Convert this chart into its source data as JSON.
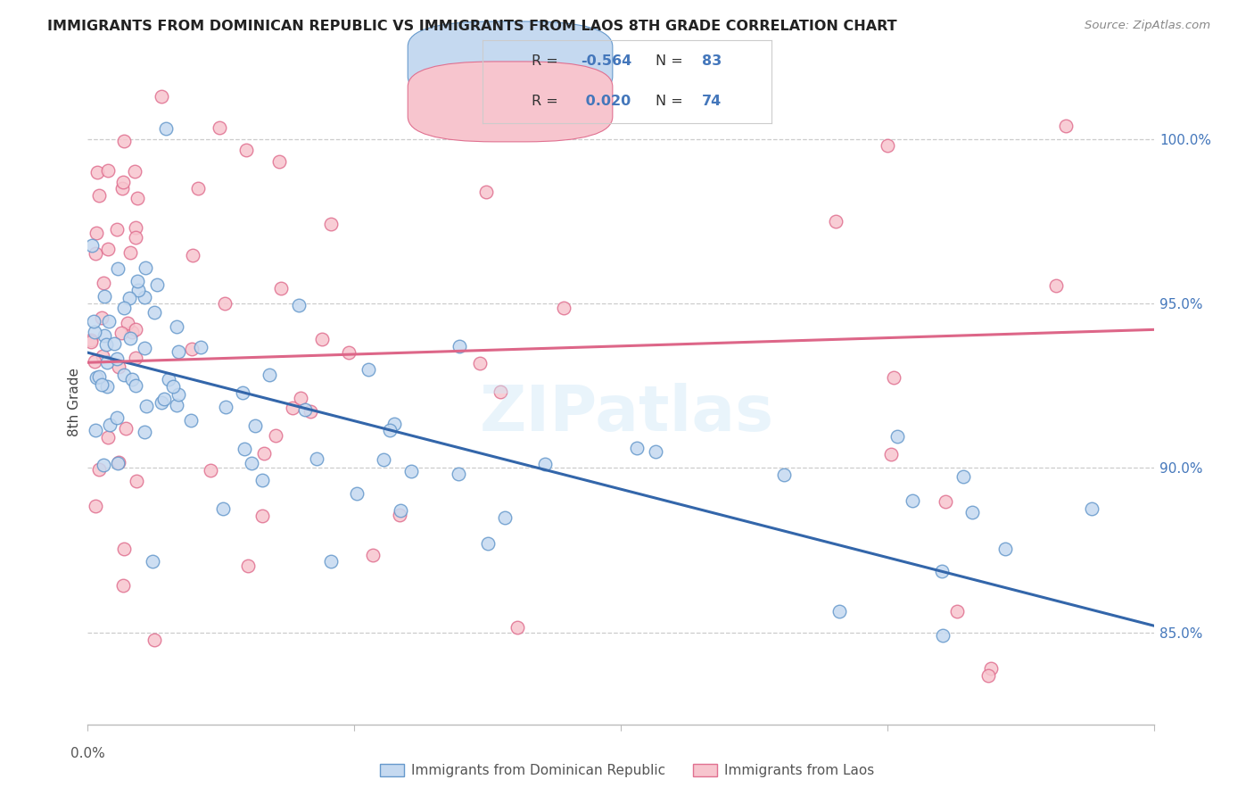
{
  "title": "IMMIGRANTS FROM DOMINICAN REPUBLIC VS IMMIGRANTS FROM LAOS 8TH GRADE CORRELATION CHART",
  "source": "Source: ZipAtlas.com",
  "ylabel": "8th Grade",
  "right_yticks": [
    "100.0%",
    "95.0%",
    "90.0%",
    "85.0%"
  ],
  "right_ytick_vals": [
    1.0,
    0.95,
    0.9,
    0.85
  ],
  "xmin": 0.0,
  "xmax": 0.4,
  "ymin": 0.822,
  "ymax": 1.018,
  "color_blue_fill": "#c5d9f0",
  "color_blue_edge": "#6699cc",
  "color_blue_line": "#3366aa",
  "color_pink_fill": "#f7c5ce",
  "color_pink_edge": "#e07090",
  "color_pink_line": "#dd6688",
  "color_legend_blue": "#4477bb",
  "blue_trend_x0": 0.0,
  "blue_trend_x1": 0.4,
  "blue_trend_y0": 0.935,
  "blue_trend_y1": 0.852,
  "pink_trend_x0": 0.0,
  "pink_trend_x1": 0.4,
  "pink_trend_y0": 0.932,
  "pink_trend_y1": 0.942,
  "seed": 42
}
